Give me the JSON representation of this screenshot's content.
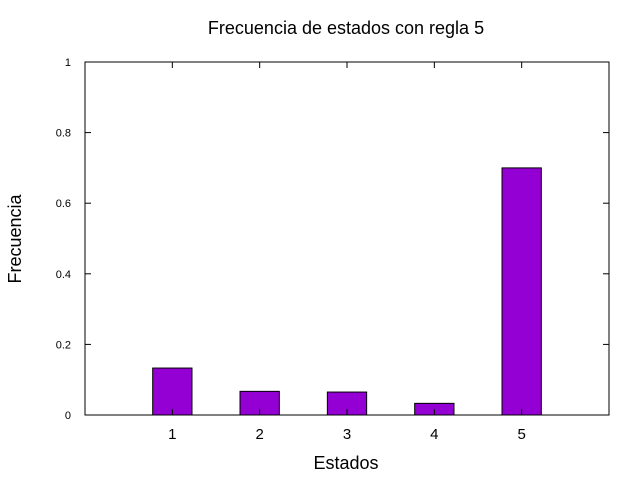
{
  "chart_data": {
    "type": "bar",
    "title": "Frecuencia de estados con regla 5",
    "xlabel": "Estados",
    "ylabel": "Frecuencia",
    "categories": [
      "1",
      "2",
      "3",
      "4",
      "5"
    ],
    "values": [
      0.133,
      0.067,
      0.065,
      0.033,
      0.7
    ],
    "ylim": [
      0,
      1
    ],
    "xlim": [
      0,
      6
    ],
    "yticks": [
      "0",
      "0.2",
      "0.4",
      "0.6",
      "0.8",
      "1"
    ],
    "yticks_values": [
      0,
      0.2,
      0.4,
      0.6,
      0.8,
      1
    ],
    "bar_color": "#9400d3",
    "grid": false,
    "legend": "none"
  }
}
